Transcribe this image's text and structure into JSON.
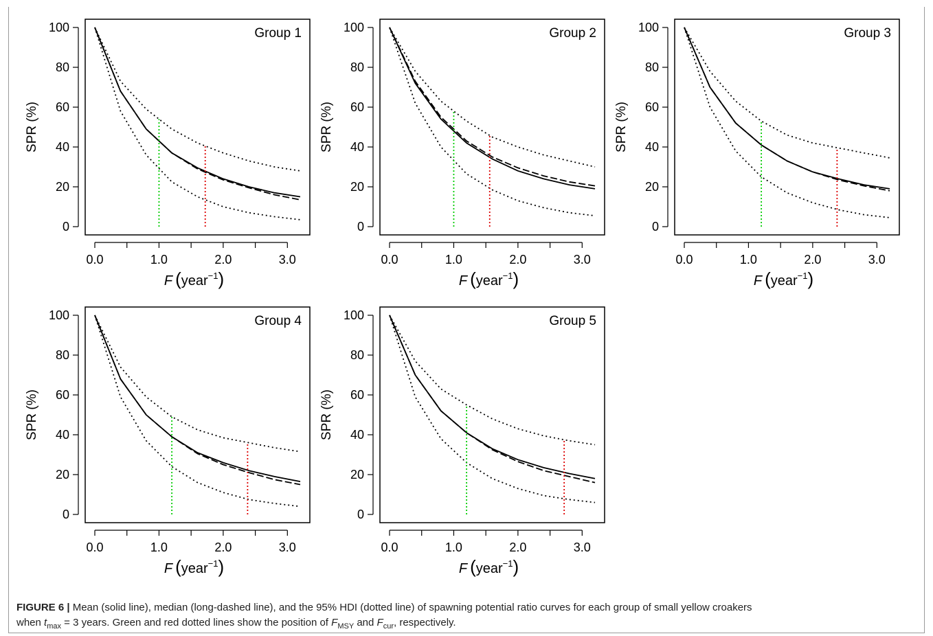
{
  "caption": {
    "label": "FIGURE 6 |",
    "line1": " Mean (solid line), median (long-dashed line), and the 95% HDI (dotted line) of spawning potential ratio curves for each group of small yellow croakers",
    "line2_a": "when ",
    "t_symbol": "t",
    "t_sub": "max",
    "line2_b": " = 3 years. Green and red dotted lines show the position of ",
    "f_symbol_1": "F",
    "f_sub_1": "MSY",
    "line2_c": " and ",
    "f_symbol_2": "F",
    "f_sub_2": "cur",
    "line2_d": ", respectively."
  },
  "colors": {
    "fmsy_line": "#00cc00",
    "fcur_line": "#dd0000",
    "curves": "#000000"
  },
  "chart_data": [
    {
      "type": "line",
      "title": "Group 1",
      "ylabel": "SPR (%)",
      "xlabel_symbol": "F",
      "xlabel_unit": "year",
      "xlabel_exp": "−1",
      "xlim": [
        0,
        3.2
      ],
      "ylim": [
        0,
        100
      ],
      "xticks": [
        0,
        1,
        2,
        3
      ],
      "xtick_labels": [
        "0.0",
        "1.0",
        "2.0",
        "3.0"
      ],
      "yticks": [
        0,
        20,
        40,
        60,
        80,
        100
      ],
      "ytick_labels": [
        "0",
        "20",
        "40",
        "60",
        "80",
        "100"
      ],
      "x": [
        0,
        0.4,
        0.8,
        1.2,
        1.6,
        2.0,
        2.4,
        2.8,
        3.2
      ],
      "series": [
        {
          "style": "solid",
          "values": [
            100,
            68,
            49,
            37,
            29.5,
            24,
            20,
            17,
            15
          ]
        },
        {
          "style": "dashed",
          "values": [
            100,
            68,
            49,
            37,
            29,
            23.5,
            19.5,
            16,
            13.5
          ]
        },
        {
          "style": "dotted",
          "values": [
            100,
            73,
            59,
            49,
            42,
            37,
            33,
            30,
            28
          ]
        },
        {
          "style": "dotted",
          "values": [
            100,
            58,
            36,
            22.5,
            15,
            10,
            7,
            5,
            3.5
          ]
        }
      ],
      "f_msy": 1.0,
      "f_cur": 1.72
    },
    {
      "type": "line",
      "title": "Group 2",
      "ylabel": "SPR (%)",
      "xlabel_symbol": "F",
      "xlabel_unit": "year",
      "xlabel_exp": "−1",
      "xlim": [
        0,
        3.2
      ],
      "ylim": [
        0,
        100
      ],
      "xticks": [
        0,
        1,
        2,
        3
      ],
      "xtick_labels": [
        "0.0",
        "1.0",
        "2.0",
        "3.0"
      ],
      "yticks": [
        0,
        20,
        40,
        60,
        80,
        100
      ],
      "ytick_labels": [
        "0",
        "20",
        "40",
        "60",
        "80",
        "100"
      ],
      "x": [
        0,
        0.4,
        0.8,
        1.2,
        1.6,
        2.0,
        2.4,
        2.8,
        3.2
      ],
      "series": [
        {
          "style": "solid",
          "values": [
            100,
            72,
            54,
            42,
            34,
            28,
            24,
            21,
            19
          ]
        },
        {
          "style": "dashed",
          "values": [
            100,
            73,
            55,
            43,
            35,
            29.5,
            25.5,
            22.5,
            20.5
          ]
        },
        {
          "style": "dotted",
          "values": [
            100,
            78,
            63,
            53,
            45,
            40,
            36,
            33,
            30
          ]
        },
        {
          "style": "dotted",
          "values": [
            100,
            62,
            40,
            26.5,
            18.5,
            13,
            9.5,
            7,
            5.5
          ]
        }
      ],
      "f_msy": 1.0,
      "f_cur": 1.56
    },
    {
      "type": "line",
      "title": "Group 3",
      "ylabel": "SPR (%)",
      "xlabel_symbol": "F",
      "xlabel_unit": "year",
      "xlabel_exp": "−1",
      "xlim": [
        0,
        3.2
      ],
      "ylim": [
        0,
        100
      ],
      "xticks": [
        0,
        1,
        2,
        3
      ],
      "xtick_labels": [
        "0.0",
        "1.0",
        "2.0",
        "3.0"
      ],
      "yticks": [
        0,
        20,
        40,
        60,
        80,
        100
      ],
      "ytick_labels": [
        "0",
        "20",
        "40",
        "60",
        "80",
        "100"
      ],
      "x": [
        0,
        0.4,
        0.8,
        1.2,
        1.6,
        2.0,
        2.4,
        2.8,
        3.2
      ],
      "series": [
        {
          "style": "solid",
          "values": [
            100,
            70,
            52,
            41,
            33,
            27.5,
            24,
            21,
            19
          ]
        },
        {
          "style": "dashed",
          "values": [
            100,
            70,
            52,
            41,
            33,
            27.5,
            23.5,
            20.5,
            18
          ]
        },
        {
          "style": "dotted",
          "values": [
            100,
            78,
            63,
            53,
            46,
            42,
            39.5,
            37,
            34.5
          ]
        },
        {
          "style": "dotted",
          "values": [
            100,
            60,
            38,
            25,
            17,
            12,
            8.5,
            6,
            4.5
          ]
        }
      ],
      "f_msy": 1.2,
      "f_cur": 2.38
    },
    {
      "type": "line",
      "title": "Group 4",
      "ylabel": "SPR (%)",
      "xlabel_symbol": "F",
      "xlabel_unit": "year",
      "xlabel_exp": "−1",
      "xlim": [
        0,
        3.2
      ],
      "ylim": [
        0,
        100
      ],
      "xticks": [
        0,
        1,
        2,
        3
      ],
      "xtick_labels": [
        "0.0",
        "1.0",
        "2.0",
        "3.0"
      ],
      "yticks": [
        0,
        20,
        40,
        60,
        80,
        100
      ],
      "ytick_labels": [
        "0",
        "20",
        "40",
        "60",
        "80",
        "100"
      ],
      "x": [
        0,
        0.4,
        0.8,
        1.2,
        1.6,
        2.0,
        2.4,
        2.8,
        3.2
      ],
      "series": [
        {
          "style": "solid",
          "values": [
            100,
            68,
            50,
            39,
            31,
            26,
            22,
            19,
            16.5
          ]
        },
        {
          "style": "dashed",
          "values": [
            100,
            68,
            50,
            39,
            30.5,
            25,
            21,
            17.5,
            15
          ]
        },
        {
          "style": "dotted",
          "values": [
            100,
            74,
            59,
            49,
            42.5,
            38.5,
            36,
            33.5,
            31.5
          ]
        },
        {
          "style": "dotted",
          "values": [
            100,
            59,
            37,
            24,
            16,
            11,
            7.5,
            5.5,
            4
          ]
        }
      ],
      "f_msy": 1.2,
      "f_cur": 2.38
    },
    {
      "type": "line",
      "title": "Group 5",
      "ylabel": "SPR (%)",
      "xlabel_symbol": "F",
      "xlabel_unit": "year",
      "xlabel_exp": "−1",
      "xlim": [
        0,
        3.2
      ],
      "ylim": [
        0,
        100
      ],
      "xticks": [
        0,
        1,
        2,
        3
      ],
      "xtick_labels": [
        "0.0",
        "1.0",
        "2.0",
        "3.0"
      ],
      "yticks": [
        0,
        20,
        40,
        60,
        80,
        100
      ],
      "ytick_labels": [
        "0",
        "20",
        "40",
        "60",
        "80",
        "100"
      ],
      "x": [
        0,
        0.4,
        0.8,
        1.2,
        1.6,
        2.0,
        2.4,
        2.8,
        3.2
      ],
      "series": [
        {
          "style": "solid",
          "values": [
            100,
            70,
            52,
            41,
            33,
            27.5,
            23.5,
            20.5,
            18
          ]
        },
        {
          "style": "dashed",
          "values": [
            100,
            70,
            52,
            41,
            32.5,
            26.5,
            22,
            19,
            16
          ]
        },
        {
          "style": "dotted",
          "values": [
            100,
            77,
            63,
            55,
            48,
            43,
            39.5,
            37,
            35
          ]
        },
        {
          "style": "dotted",
          "values": [
            100,
            59,
            38,
            26,
            18,
            13,
            9.5,
            7.5,
            6
          ]
        }
      ],
      "f_msy": 1.2,
      "f_cur": 2.72
    }
  ]
}
